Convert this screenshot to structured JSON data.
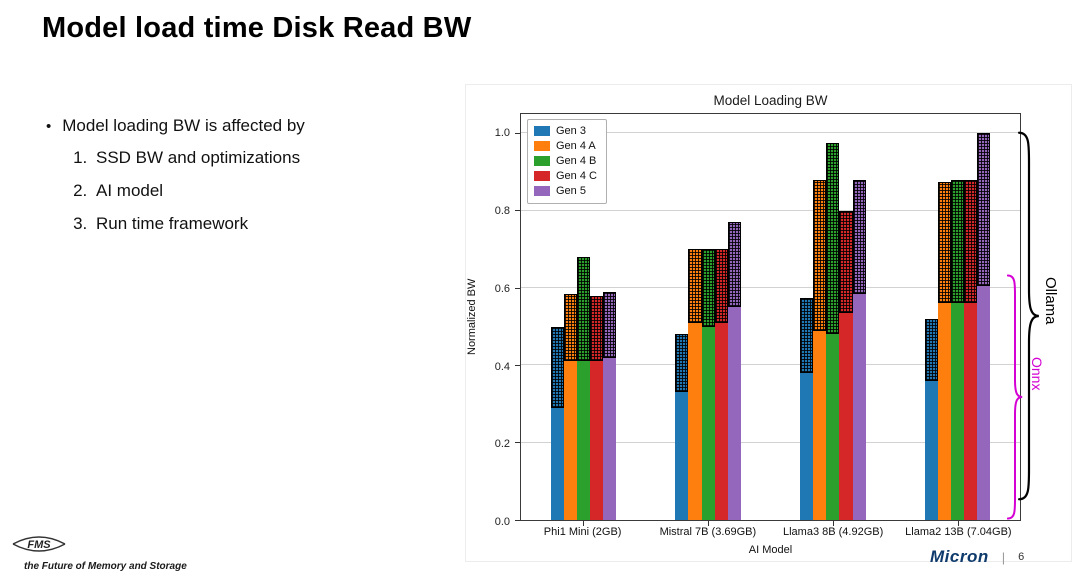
{
  "slide": {
    "title": "Model load time Disk Read BW",
    "bullet_dot": "•",
    "bullet_intro": "Model loading BW is affected by",
    "bullet_items": [
      "SSD BW and optimizations",
      "AI model",
      "Run time framework"
    ],
    "footer": {
      "fms_logo": "FMS",
      "fms_tagline": "the Future of Memory and Storage",
      "brand": "Micron",
      "brand_color": "#0e3a6c",
      "divider": "|",
      "page_number": "6"
    }
  },
  "chart_data": {
    "type": "bar",
    "title": "Model Loading BW",
    "xlabel": "AI Model",
    "ylabel": "Normalized BW",
    "ylim": [
      0,
      1.05
    ],
    "yticks": [
      0.0,
      0.2,
      0.4,
      0.6,
      0.8,
      1.0
    ],
    "grid": true,
    "legend_position": "upper left",
    "categories": [
      "Phi1 Mini (2GB)",
      "Mistral 7B (3.69GB)",
      "Llama3 8B (4.92GB)",
      "Llama2 13B (7.04GB)"
    ],
    "series_semantics": {
      "solid_bottom": "Onnx",
      "hatched_top_total": "Ollama"
    },
    "series": [
      {
        "name": "Gen 3",
        "color": "#1f77b4",
        "onnx": [
          0.29,
          0.33,
          0.38,
          0.36
        ],
        "ollama": [
          0.5,
          0.48,
          0.575,
          0.52
        ]
      },
      {
        "name": "Gen 4 A",
        "color": "#ff7f0e",
        "onnx": [
          0.41,
          0.51,
          0.49,
          0.56
        ],
        "ollama": [
          0.585,
          0.7,
          0.88,
          0.875
        ]
      },
      {
        "name": "Gen 4 B",
        "color": "#2ca02c",
        "onnx": [
          0.41,
          0.5,
          0.48,
          0.56
        ],
        "ollama": [
          0.68,
          0.7,
          0.975,
          0.88
        ]
      },
      {
        "name": "Gen 4 C",
        "color": "#d62728",
        "onnx": [
          0.41,
          0.51,
          0.535,
          0.56
        ],
        "ollama": [
          0.58,
          0.7,
          0.8,
          0.88
        ]
      },
      {
        "name": "Gen 5",
        "color": "#9467bd",
        "onnx": [
          0.42,
          0.55,
          0.585,
          0.605
        ],
        "ollama": [
          0.59,
          0.77,
          0.88,
          1.0
        ]
      }
    ],
    "right_annotations": [
      {
        "text": "Ollama",
        "color": "#000000"
      },
      {
        "text": "Onnx",
        "color": "#d400d4"
      }
    ]
  }
}
